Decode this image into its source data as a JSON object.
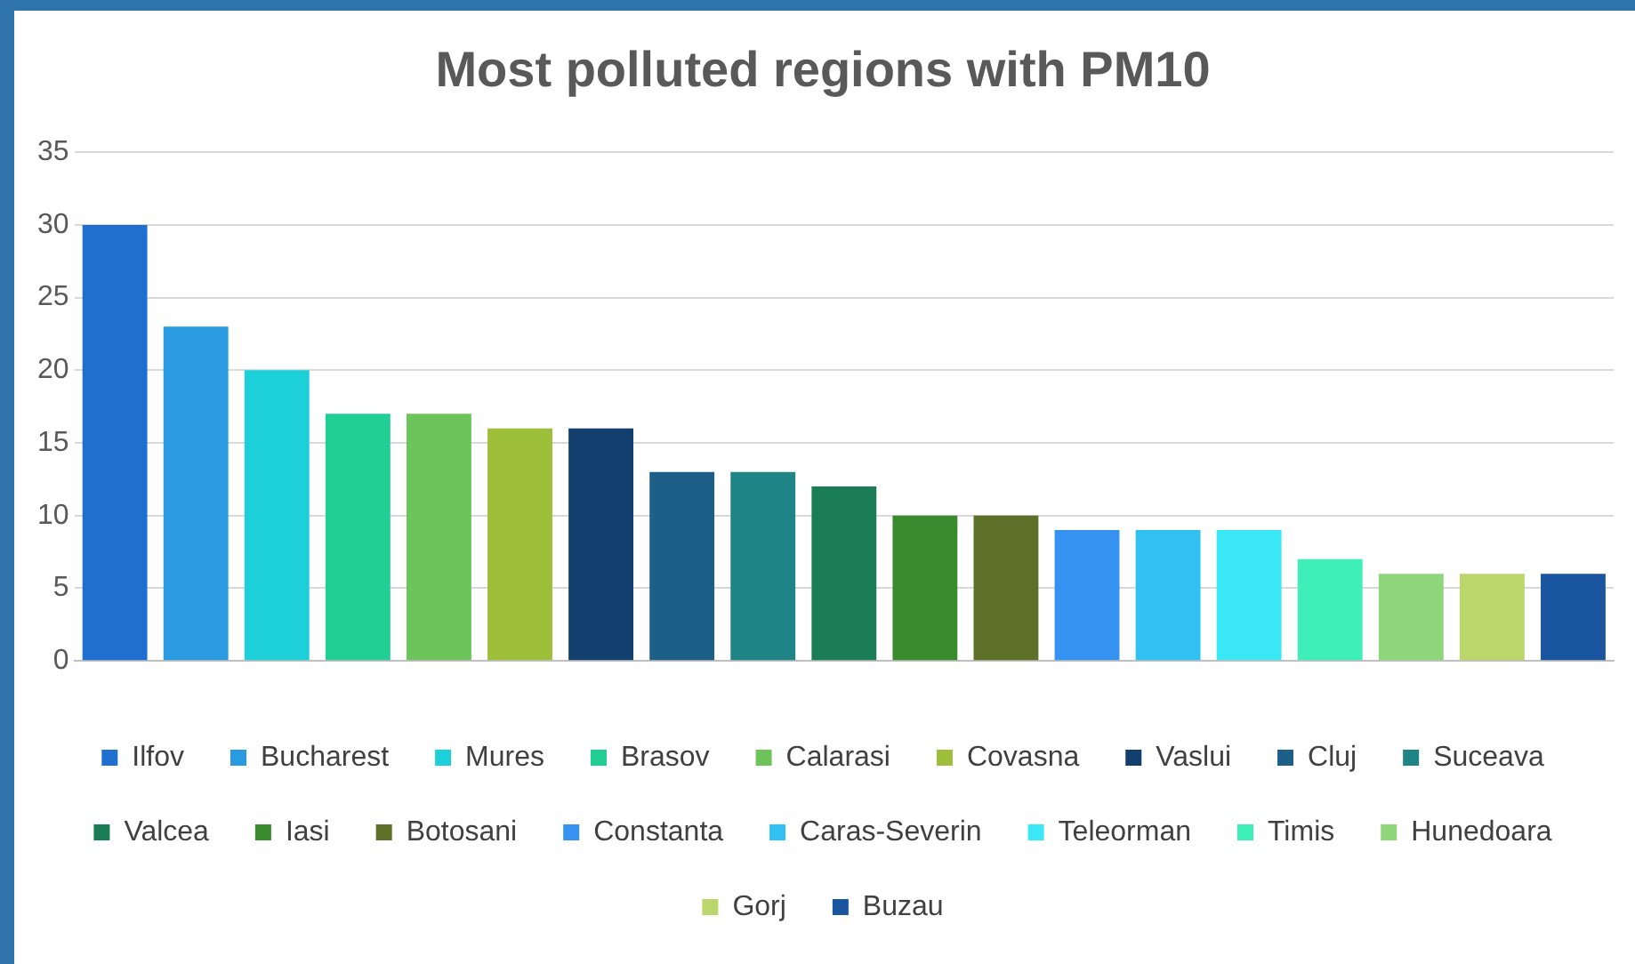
{
  "chart_data": {
    "type": "bar",
    "title": "Most polluted regions with PM10",
    "categories": [
      null
    ],
    "series": [
      {
        "name": "Ilfov",
        "color": "#1f6fd0",
        "values": [
          30
        ]
      },
      {
        "name": "Bucharest",
        "color": "#2a9be0",
        "values": [
          23
        ]
      },
      {
        "name": "Mures",
        "color": "#1ccfd8",
        "values": [
          20
        ]
      },
      {
        "name": "Brasov",
        "color": "#21cf95",
        "values": [
          17
        ]
      },
      {
        "name": "Calarasi",
        "color": "#6cc45a",
        "values": [
          17
        ]
      },
      {
        "name": "Covasna",
        "color": "#9dbf3a",
        "values": [
          16
        ]
      },
      {
        "name": "Vaslui",
        "color": "#123f6e",
        "values": [
          16
        ]
      },
      {
        "name": "Cluj",
        "color": "#1d5f86",
        "values": [
          13
        ]
      },
      {
        "name": "Suceava",
        "color": "#1e8485",
        "values": [
          13
        ]
      },
      {
        "name": "Valcea",
        "color": "#1b7d55",
        "values": [
          12
        ]
      },
      {
        "name": "Iasi",
        "color": "#3a8a2e",
        "values": [
          10
        ]
      },
      {
        "name": "Botosani",
        "color": "#5c7028",
        "values": [
          10
        ]
      },
      {
        "name": "Constanta",
        "color": "#3592f0",
        "values": [
          9
        ]
      },
      {
        "name": "Caras-Severin",
        "color": "#30c0f2",
        "values": [
          9
        ]
      },
      {
        "name": "Teleorman",
        "color": "#3ae8f5",
        "values": [
          9
        ]
      },
      {
        "name": "Timis",
        "color": "#3eefb8",
        "values": [
          7
        ]
      },
      {
        "name": "Hunedoara",
        "color": "#8fd67a",
        "values": [
          6
        ]
      },
      {
        "name": "Gorj",
        "color": "#bbd66a",
        "values": [
          6
        ]
      },
      {
        "name": "Buzau",
        "color": "#1a55a0",
        "values": [
          6
        ]
      }
    ],
    "ylim": [
      0,
      35
    ],
    "yticks": [
      0,
      5,
      10,
      15,
      20,
      25,
      30,
      35
    ],
    "grid": "y",
    "legend": "bottom"
  }
}
